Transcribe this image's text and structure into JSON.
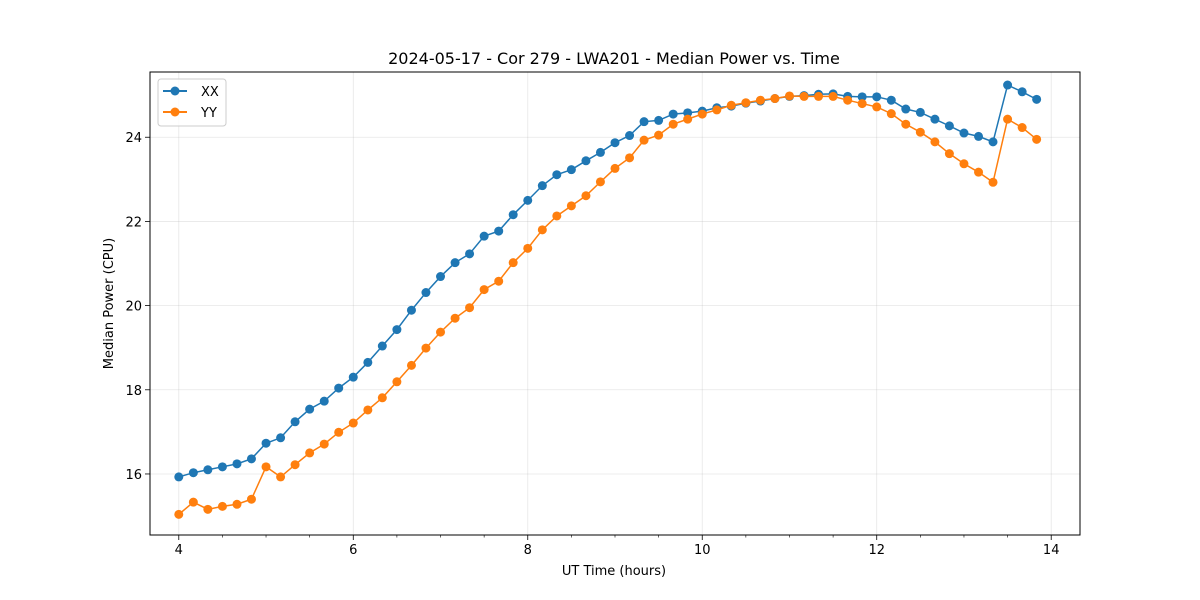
{
  "chart_data": {
    "type": "line",
    "title": "2024-05-17 - Cor 279 - LWA201 - Median Power vs. Time",
    "xlabel": "UT Time (hours)",
    "ylabel": "Median Power (CPU)",
    "xlim": [
      3.67,
      14.33
    ],
    "ylim": [
      14.55,
      25.55
    ],
    "xticks": [
      4,
      6,
      8,
      10,
      12,
      14
    ],
    "yticks": [
      16,
      18,
      20,
      22,
      24
    ],
    "grid": true,
    "legend_position": "top-left",
    "x": [
      4.0,
      4.167,
      4.333,
      4.5,
      4.667,
      4.833,
      5.0,
      5.167,
      5.333,
      5.5,
      5.667,
      5.833,
      6.0,
      6.167,
      6.333,
      6.5,
      6.667,
      6.833,
      7.0,
      7.167,
      7.333,
      7.5,
      7.667,
      7.833,
      8.0,
      8.167,
      8.333,
      8.5,
      8.667,
      8.833,
      9.0,
      9.167,
      9.333,
      9.5,
      9.667,
      9.833,
      10.0,
      10.167,
      10.333,
      10.5,
      10.667,
      10.833,
      11.0,
      11.167,
      11.333,
      11.5,
      11.667,
      11.833,
      12.0,
      12.167,
      12.333,
      12.5,
      12.667,
      12.833,
      13.0,
      13.167,
      13.333,
      13.5,
      13.667,
      13.833
    ],
    "series": [
      {
        "name": "XX",
        "color": "#1f77b4",
        "values": [
          15.93,
          16.03,
          16.1,
          16.17,
          16.24,
          16.36,
          16.73,
          16.86,
          17.24,
          17.54,
          17.73,
          18.04,
          18.3,
          18.65,
          19.04,
          19.43,
          19.89,
          20.31,
          20.69,
          21.02,
          21.23,
          21.65,
          21.77,
          22.16,
          22.5,
          22.85,
          23.11,
          23.23,
          23.44,
          23.64,
          23.87,
          24.04,
          24.37,
          24.4,
          24.55,
          24.58,
          24.62,
          24.7,
          24.74,
          24.81,
          24.86,
          24.92,
          24.97,
          24.99,
          25.02,
          25.03,
          24.97,
          24.96,
          24.96,
          24.88,
          24.67,
          24.59,
          24.43,
          24.27,
          24.1,
          24.02,
          23.89,
          25.24,
          25.08,
          24.9
        ]
      },
      {
        "name": "YY",
        "color": "#ff7f0e",
        "values": [
          15.04,
          15.33,
          15.16,
          15.23,
          15.28,
          15.4,
          16.17,
          15.93,
          16.22,
          16.5,
          16.71,
          16.99,
          17.21,
          17.52,
          17.81,
          18.19,
          18.58,
          18.99,
          19.37,
          19.7,
          19.95,
          20.38,
          20.58,
          21.02,
          21.36,
          21.8,
          22.13,
          22.37,
          22.61,
          22.94,
          23.26,
          23.51,
          23.93,
          24.05,
          24.31,
          24.43,
          24.55,
          24.65,
          24.76,
          24.82,
          24.88,
          24.92,
          24.98,
          24.97,
          24.97,
          24.97,
          24.88,
          24.8,
          24.72,
          24.56,
          24.31,
          24.12,
          23.89,
          23.61,
          23.37,
          23.17,
          22.93,
          24.43,
          24.23,
          23.95
        ]
      }
    ]
  }
}
